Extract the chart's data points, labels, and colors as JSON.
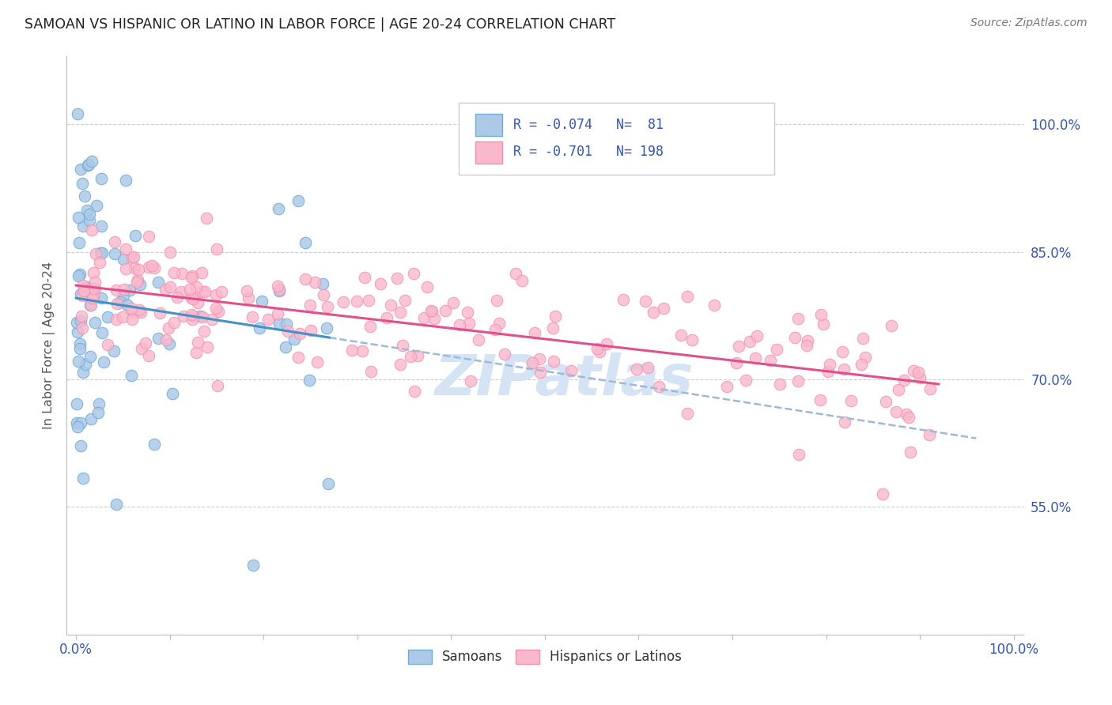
{
  "title": "SAMOAN VS HISPANIC OR LATINO IN LABOR FORCE | AGE 20-24 CORRELATION CHART",
  "source": "Source: ZipAtlas.com",
  "ylabel": "In Labor Force | Age 20-24",
  "color_samoan_fill": "#aec9e8",
  "color_samoan_edge": "#6baed6",
  "color_hispanic_fill": "#f9b8cc",
  "color_hispanic_edge": "#f48fb1",
  "color_blue_line": "#4292c6",
  "color_pink_line": "#e0508a",
  "color_dashed": "#a0b8d8",
  "watermark_color": "#d4e4f5",
  "background_color": "#ffffff",
  "grid_color": "#cccccc",
  "axis_label_color": "#3355bb",
  "title_color": "#222222",
  "source_color": "#777777",
  "y_ticks": [
    0.55,
    0.7,
    0.85,
    1.0
  ],
  "y_tick_labels": [
    "55.0%",
    "70.0%",
    "85.0%",
    "100.0%"
  ],
  "xlim": [
    -0.01,
    1.01
  ],
  "ylim": [
    0.4,
    1.08
  ]
}
